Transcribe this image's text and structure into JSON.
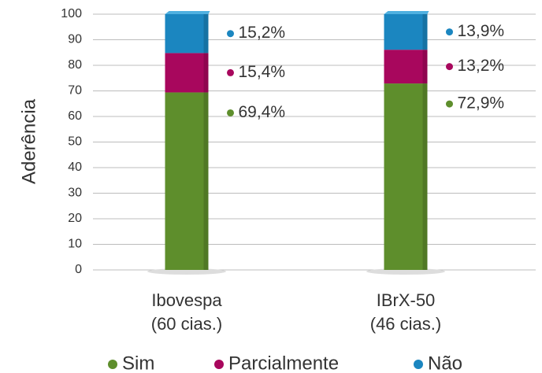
{
  "chart_data": {
    "type": "stacked_bar",
    "y_label": "Aderência",
    "categories": [
      [
        "Ibovespa",
        "(60 cias.)"
      ],
      [
        "IBrX-50",
        "(46 cias.)"
      ]
    ],
    "series": [
      {
        "name": "Sim",
        "color": "#5e8e2c",
        "values": [
          69.4,
          72.9
        ],
        "value_labels": [
          "69,4%",
          "72,9%"
        ]
      },
      {
        "name": "Parcialmente",
        "color": "#a8075d",
        "values": [
          15.4,
          13.2
        ],
        "value_labels": [
          "15,4%",
          "13,2%"
        ]
      },
      {
        "name": "Não",
        "color": "#1b86c0",
        "values": [
          15.2,
          13.9
        ],
        "value_labels": [
          "15,2%",
          "13,9%"
        ]
      }
    ],
    "ylim": [
      0,
      100
    ],
    "yticks": [
      0,
      10,
      20,
      30,
      40,
      50,
      60,
      70,
      80,
      90,
      100
    ],
    "grid": true,
    "legend": "bottom"
  }
}
